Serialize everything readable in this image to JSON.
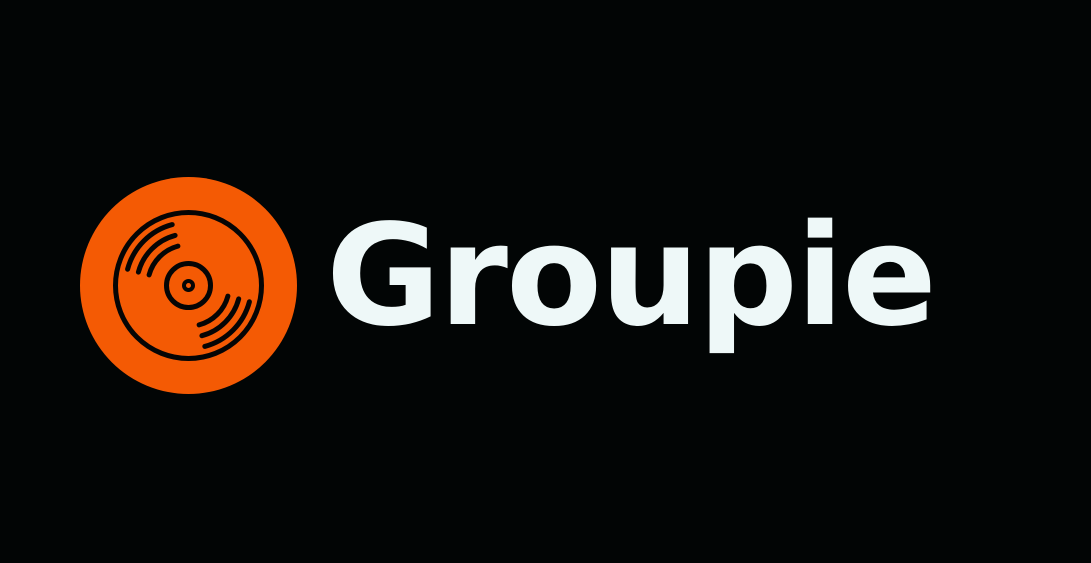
{
  "brand": {
    "name": "Groupie",
    "icon": "vinyl-record-icon",
    "colors": {
      "background": "#020505",
      "badge": "#f45a04",
      "icon_stroke": "#050505",
      "text": "#eef8f8"
    }
  }
}
